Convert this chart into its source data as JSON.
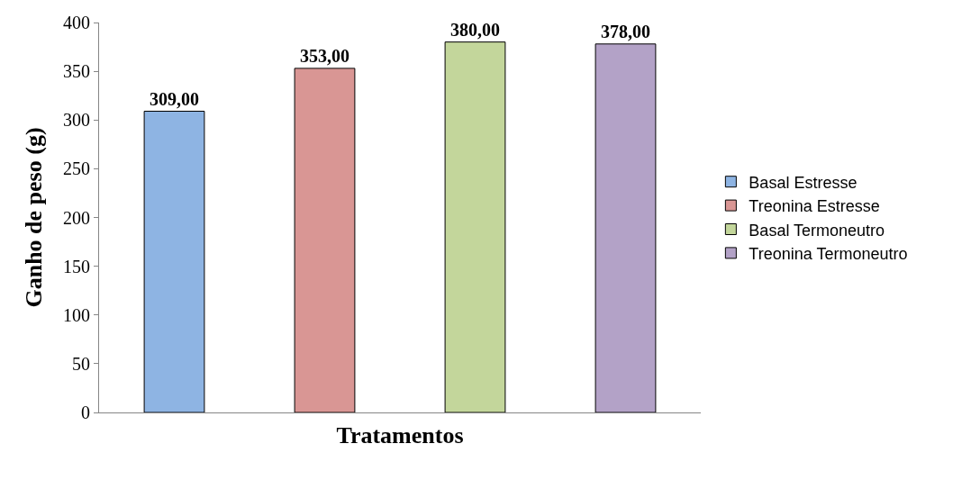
{
  "chart_data": {
    "type": "bar",
    "xlabel": "Tratamentos",
    "ylabel": "Ganho de peso (g)",
    "categories": [
      null
    ],
    "series": [
      {
        "name": "Basal Estresse",
        "color": "#8eb4e3",
        "values": [
          309
        ],
        "value_labels": [
          "309,00"
        ]
      },
      {
        "name": "Treonina Estresse",
        "color": "#d99694",
        "values": [
          353
        ],
        "value_labels": [
          "353,00"
        ]
      },
      {
        "name": "Basal Termoneutro",
        "color": "#c3d69b",
        "values": [
          380
        ],
        "value_labels": [
          "380,00"
        ]
      },
      {
        "name": "Treonina Termoneutro",
        "color": "#b3a2c7",
        "values": [
          378
        ],
        "value_labels": [
          "378,00"
        ]
      }
    ],
    "ylim": [
      0,
      400
    ],
    "yticks": [
      0,
      50,
      100,
      150,
      200,
      250,
      300,
      350,
      400
    ],
    "legend": "right",
    "tick_labels": "y"
  }
}
